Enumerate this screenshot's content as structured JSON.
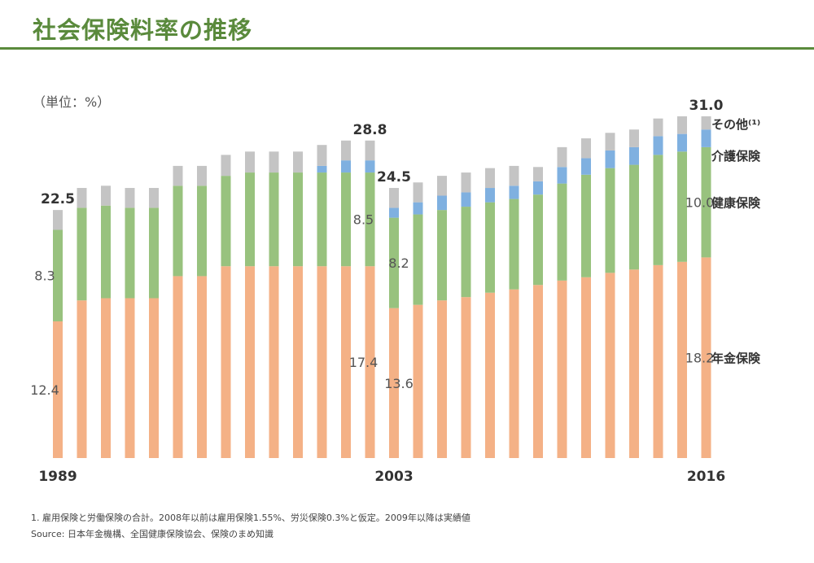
{
  "header": {
    "title": "社会保険料率の推移"
  },
  "chart_data": {
    "type": "bar",
    "stacked": true,
    "title": "社会保険料率の推移",
    "unit_label": "（単位：%）",
    "categories": [
      "1989",
      "1990",
      "1991",
      "1992",
      "1993",
      "1994",
      "1995",
      "1996",
      "1997",
      "1998",
      "1999",
      "2000",
      "2001",
      "2002",
      "2003",
      "2004",
      "2005",
      "2006",
      "2007",
      "2008",
      "2009",
      "2010",
      "2011",
      "2012",
      "2013",
      "2014",
      "2015",
      "2016"
    ],
    "x_tick_labels": [
      "1989",
      "2003",
      "2016"
    ],
    "ylim": [
      0,
      32
    ],
    "series": [
      {
        "name": "年金保険",
        "color": "#f4b186",
        "values": [
          12.4,
          14.3,
          14.5,
          14.5,
          14.5,
          16.5,
          16.5,
          17.4,
          17.4,
          17.4,
          17.4,
          17.4,
          17.4,
          17.4,
          13.6,
          13.9,
          14.3,
          14.6,
          15.0,
          15.3,
          15.7,
          16.1,
          16.4,
          16.8,
          17.1,
          17.5,
          17.8,
          18.2
        ]
      },
      {
        "name": "健康保険",
        "color": "#98c27e",
        "values": [
          8.3,
          8.4,
          8.4,
          8.2,
          8.2,
          8.2,
          8.2,
          8.2,
          8.5,
          8.5,
          8.5,
          8.5,
          8.5,
          8.5,
          8.2,
          8.2,
          8.2,
          8.2,
          8.2,
          8.2,
          8.2,
          8.8,
          9.3,
          9.5,
          9.5,
          10.0,
          10.0,
          10.0
        ]
      },
      {
        "name": "介護保険",
        "color": "#7fb0e0",
        "values": [
          0,
          0,
          0,
          0,
          0,
          0,
          0,
          0,
          0,
          0,
          0,
          0.6,
          1.1,
          1.1,
          0.9,
          1.1,
          1.3,
          1.3,
          1.3,
          1.2,
          1.2,
          1.5,
          1.5,
          1.6,
          1.6,
          1.7,
          1.6,
          1.6
        ]
      },
      {
        "name": "その他⁽¹⁾",
        "color": "#c4c4c4",
        "values": [
          1.8,
          1.8,
          1.8,
          1.8,
          1.8,
          1.8,
          1.8,
          1.9,
          1.9,
          1.9,
          1.9,
          1.9,
          1.8,
          1.8,
          1.8,
          1.8,
          1.8,
          1.8,
          1.8,
          1.8,
          1.3,
          1.8,
          1.8,
          1.6,
          1.6,
          1.6,
          1.6,
          1.2
        ]
      }
    ],
    "total_labels": [
      {
        "category": "1989",
        "text": "22.5"
      },
      {
        "category": "2002",
        "text": "28.8"
      },
      {
        "category": "2003",
        "text": "24.5"
      },
      {
        "category": "2016",
        "text": "31.0"
      }
    ],
    "segment_labels": [
      {
        "category": "1989",
        "series": "健康保険",
        "text": "8.3"
      },
      {
        "category": "1989",
        "series": "年金保険",
        "text": "12.4"
      },
      {
        "category": "2002",
        "series": "健康保険",
        "text": "8.5"
      },
      {
        "category": "2002",
        "series": "年金保険",
        "text": "17.4"
      },
      {
        "category": "2003",
        "series": "健康保険",
        "text": "8.2"
      },
      {
        "category": "2003",
        "series": "年金保険",
        "text": "13.6"
      },
      {
        "category": "2016",
        "series": "健康保険",
        "text": "10.0"
      },
      {
        "category": "2016",
        "series": "年金保険",
        "text": "18.2"
      }
    ],
    "legend": [
      {
        "series": "その他⁽¹⁾",
        "text": "その他⁽¹⁾"
      },
      {
        "series": "介護保険",
        "text": "介護保険"
      },
      {
        "series": "健康保険",
        "text": "健康保険"
      },
      {
        "series": "年金保険",
        "text": "年金保険"
      }
    ]
  },
  "footnotes": {
    "note1": "1. 雇用保険と労働保険の合計。2008年以前は雇用保険1.55%、労災保険0.3%と仮定。2009年以降は実績値",
    "source": "Source: 日本年金機構、全国健康保険協会、保険のまめ知識"
  }
}
